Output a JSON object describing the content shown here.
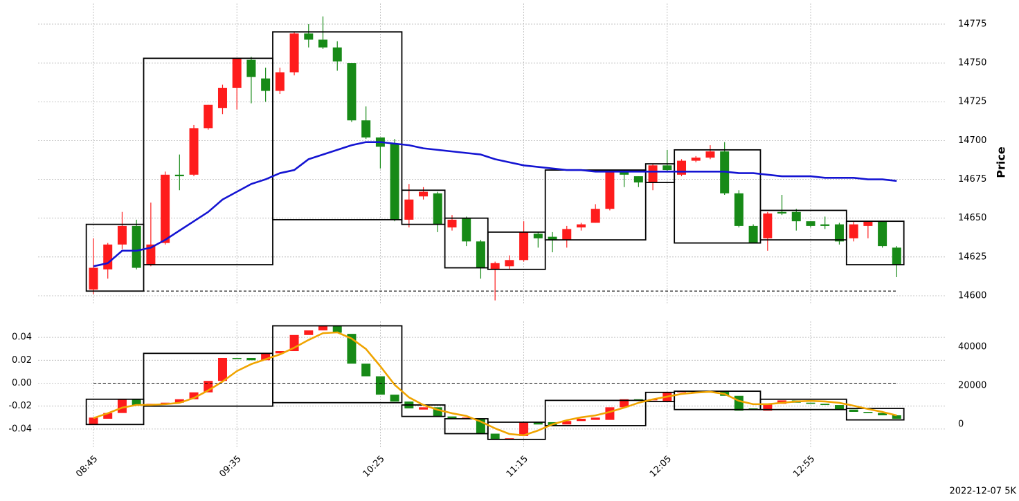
{
  "chart_data": [
    {
      "type": "candlestick",
      "ylabel": "Price",
      "ylim": [
        14595,
        14785
      ],
      "yticks": [
        14600,
        14625,
        14650,
        14675,
        14700,
        14725,
        14750,
        14775
      ],
      "grid": true,
      "up_color": "#fe1c1c",
      "down_color": "#178a17",
      "open": [
        14604,
        14617,
        14633,
        14645,
        14620,
        14634,
        14678,
        14678,
        14708,
        14721,
        14734,
        14752,
        14740,
        14732,
        14744,
        14769,
        14765,
        14760,
        14750,
        14713,
        14702,
        14698,
        14649,
        14664,
        14666,
        14644,
        14650,
        14635,
        14617,
        14619,
        14623,
        14640,
        14638,
        14636,
        14644,
        14647,
        14656,
        14680,
        14677,
        14673,
        14684,
        14678,
        14687,
        14689,
        14693,
        14666,
        14645,
        14637,
        14654,
        14654,
        14648,
        14646,
        14646,
        14637,
        14645,
        14648,
        14631
      ],
      "high": [
        14637,
        14634,
        14654,
        14649,
        14660,
        14680,
        14691,
        14710,
        14723,
        14736,
        14753,
        14754,
        14747,
        14747,
        14770,
        14775,
        14780,
        14764,
        14750,
        14722,
        14702,
        14701,
        14672,
        14670,
        14667,
        14652,
        14651,
        14636,
        14622,
        14626,
        14648,
        14641,
        14641,
        14645,
        14647,
        14659,
        14681,
        14681,
        14677,
        14685,
        14694,
        14688,
        14690,
        14697,
        14699,
        14668,
        14646,
        14654,
        14665,
        14656,
        14648,
        14651,
        14647,
        14648,
        14648,
        14648,
        14632
      ],
      "low": [
        14601,
        14611,
        14630,
        14617,
        14619,
        14633,
        14668,
        14677,
        14707,
        14717,
        14720,
        14724,
        14725,
        14730,
        14742,
        14760,
        14759,
        14745,
        14712,
        14701,
        14682,
        14648,
        14644,
        14662,
        14641,
        14642,
        14632,
        14611,
        14597,
        14617,
        14622,
        14631,
        14628,
        14631,
        14642,
        14647,
        14655,
        14670,
        14670,
        14668,
        14680,
        14677,
        14686,
        14688,
        14665,
        14644,
        14634,
        14629,
        14652,
        14642,
        14644,
        14643,
        14633,
        14635,
        14637,
        14631,
        14612
      ],
      "close": [
        14618,
        14633,
        14645,
        14618,
        14633,
        14678,
        14677,
        14708,
        14723,
        14734,
        14753,
        14741,
        14732,
        14744,
        14769,
        14765,
        14760,
        14751,
        14713,
        14702,
        14696,
        14649,
        14662,
        14667,
        14646,
        14649,
        14635,
        14618,
        14621,
        14623,
        14641,
        14637,
        14636,
        14643,
        14646,
        14656,
        14680,
        14678,
        14673,
        14684,
        14681,
        14687,
        14689,
        14693,
        14666,
        14645,
        14634,
        14653,
        14653,
        14648,
        14645,
        14645,
        14635,
        14646,
        14648,
        14632,
        14620
      ],
      "lines": [
        {
          "color": "#1414d2",
          "values": [
            14619,
            14621,
            14629,
            14629,
            14631,
            14636,
            14642,
            14648,
            14654,
            14662,
            14667,
            14672,
            14675,
            14679,
            14681,
            14688,
            14691,
            14694,
            14697,
            14699,
            14699,
            14698,
            14697,
            14695,
            14694,
            14693,
            14692,
            14691,
            14688,
            14686,
            14684,
            14683,
            14682,
            14681,
            14681,
            14680,
            14680,
            14680,
            14680,
            14680,
            14680,
            14680,
            14680,
            14680,
            14680,
            14679,
            14679,
            14678,
            14677,
            14677,
            14677,
            14676,
            14676,
            14676,
            14675,
            14675,
            14674
          ]
        }
      ],
      "hline": 14603,
      "boxes": [
        {
          "start": 0,
          "end": 3,
          "high": 14646,
          "low": 14603
        },
        {
          "start": 4,
          "end": 12,
          "high": 14753,
          "low": 14620
        },
        {
          "start": 13,
          "end": 21,
          "high": 14770,
          "low": 14649
        },
        {
          "start": 22,
          "end": 24,
          "high": 14668,
          "low": 14646
        },
        {
          "start": 25,
          "end": 27,
          "high": 14650,
          "low": 14618
        },
        {
          "start": 28,
          "end": 31,
          "high": 14641,
          "low": 14617
        },
        {
          "start": 32,
          "end": 38,
          "high": 14681,
          "low": 14636
        },
        {
          "start": 39,
          "end": 40,
          "high": 14685,
          "low": 14673
        },
        {
          "start": 41,
          "end": 46,
          "high": 14694,
          "low": 14634
        },
        {
          "start": 47,
          "end": 52,
          "high": 14655,
          "low": 14636
        },
        {
          "start": 53,
          "end": 56,
          "high": 14648,
          "low": 14620
        }
      ]
    },
    {
      "type": "candlestick",
      "categories": [
        "08:45",
        null,
        null,
        null,
        null,
        null,
        null,
        null,
        null,
        null,
        "09:35",
        null,
        null,
        null,
        null,
        null,
        null,
        null,
        null,
        null,
        "10:25",
        null,
        null,
        null,
        null,
        null,
        null,
        null,
        null,
        null,
        "11:15",
        null,
        null,
        null,
        null,
        null,
        null,
        null,
        null,
        null,
        "12:05",
        null,
        null,
        null,
        null,
        null,
        null,
        null,
        null,
        null,
        "12:55",
        null,
        null,
        null,
        null,
        null,
        null
      ],
      "ylim": [
        -0.05,
        0.05
      ],
      "yticks": [
        -0.04,
        -0.02,
        {
          "value": 0,
          "label": "0.00"
        },
        0.02,
        0.04
      ],
      "y2lim": [
        -8390,
        50890
      ],
      "y2ticks": [
        0,
        20000,
        40000
      ],
      "grid": true,
      "up_color": "#fe1c1c",
      "down_color": "#178a17",
      "open": [
        -0.036,
        -0.031,
        -0.026,
        -0.014,
        -0.019,
        -0.018,
        -0.017,
        -0.014,
        -0.008,
        0.002,
        0.022,
        0.022,
        0.02,
        0.026,
        0.028,
        0.042,
        0.046,
        0.05,
        0.043,
        0.017,
        0.006,
        -0.01,
        -0.016,
        -0.023,
        -0.021,
        -0.029,
        -0.031,
        -0.031,
        -0.044,
        -0.049,
        -0.046,
        -0.034,
        -0.034,
        -0.036,
        -0.033,
        -0.032,
        -0.032,
        -0.021,
        -0.014,
        -0.015,
        -0.016,
        -0.008,
        -0.008,
        -0.008,
        -0.007,
        -0.011,
        -0.022,
        -0.024,
        -0.018,
        -0.015,
        -0.017,
        -0.018,
        -0.019,
        -0.023,
        -0.025,
        -0.026,
        -0.028
      ],
      "close": [
        -0.03,
        -0.026,
        -0.014,
        -0.019,
        -0.018,
        -0.017,
        -0.014,
        -0.008,
        0.002,
        0.022,
        0.021,
        0.02,
        0.026,
        0.028,
        0.042,
        0.046,
        0.05,
        0.044,
        0.017,
        0.006,
        -0.01,
        -0.016,
        -0.022,
        -0.021,
        -0.029,
        -0.031,
        -0.03,
        -0.044,
        -0.049,
        -0.048,
        -0.034,
        -0.036,
        -0.037,
        -0.033,
        -0.031,
        -0.03,
        -0.021,
        -0.014,
        -0.015,
        -0.014,
        -0.008,
        -0.007,
        -0.007,
        -0.007,
        -0.011,
        -0.024,
        -0.023,
        -0.018,
        -0.015,
        -0.017,
        -0.018,
        -0.019,
        -0.023,
        -0.025,
        -0.026,
        -0.028,
        -0.031
      ],
      "lines": [
        {
          "color": "#f0a400",
          "axis": "y2",
          "values": [
            3200,
            5700,
            8600,
            10000,
            10000,
            10400,
            11100,
            13600,
            17500,
            22100,
            27500,
            31100,
            33600,
            36100,
            39600,
            43600,
            47100,
            47500,
            44300,
            38900,
            30000,
            20400,
            13900,
            10000,
            7500,
            5700,
            4300,
            1400,
            -2100,
            -5000,
            -5700,
            -3200,
            0,
            2100,
            3600,
            4600,
            6400,
            8600,
            11100,
            12900,
            14300,
            15700,
            16400,
            16800,
            15700,
            12100,
            10400,
            10400,
            11100,
            11800,
            12100,
            11800,
            11100,
            9600,
            7900,
            6400,
            4600
          ]
        }
      ],
      "hline": 0,
      "boxes": [
        {
          "start": 0,
          "end": 3,
          "high": -0.014,
          "low": -0.036
        },
        {
          "start": 4,
          "end": 12,
          "high": 0.026,
          "low": -0.02
        },
        {
          "start": 13,
          "end": 21,
          "high": 0.05,
          "low": -0.017
        },
        {
          "start": 22,
          "end": 24,
          "high": -0.019,
          "low": -0.029
        },
        {
          "start": 25,
          "end": 27,
          "high": -0.031,
          "low": -0.044
        },
        {
          "start": 28,
          "end": 31,
          "high": -0.034,
          "low": -0.049
        },
        {
          "start": 32,
          "end": 38,
          "high": -0.015,
          "low": -0.037
        },
        {
          "start": 39,
          "end": 40,
          "high": -0.008,
          "low": -0.016
        },
        {
          "start": 41,
          "end": 46,
          "high": -0.007,
          "low": -0.023
        },
        {
          "start": 47,
          "end": 52,
          "high": -0.014,
          "low": -0.023
        },
        {
          "start": 53,
          "end": 56,
          "high": -0.022,
          "low": -0.032
        }
      ],
      "caption": "2022-12-07 5K"
    }
  ]
}
